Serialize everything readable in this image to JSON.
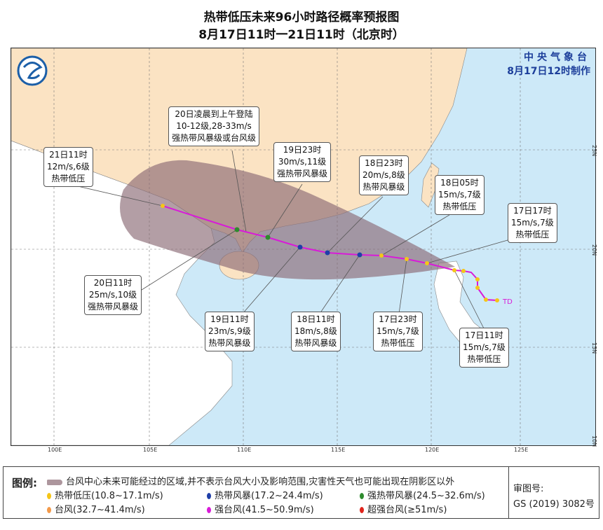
{
  "title": "热带低压未来96小时路径概率预报图",
  "subtitle": "8月17日11时一21日11时（北京时）",
  "issuer": {
    "name": "中央气象台",
    "time": "8月17日12时制作"
  },
  "lon_ticks": [
    "100E",
    "105E",
    "110E",
    "115E",
    "120E",
    "125E"
  ],
  "lat_ticks": [
    "25N",
    "20N",
    "15N",
    "10N"
  ],
  "colors": {
    "ocean": "#cde9f8",
    "china_land": "#fbe3c3",
    "other_land": "#ffffff",
    "cone": "#8a6a74",
    "track": "#d81bd8",
    "td": "#f5c518",
    "ts": "#1f3fa8",
    "sts": "#2e8b2e"
  },
  "track_label": "TD",
  "labels": [
    {
      "time": "21日11时",
      "wind": "12m/s,6级",
      "level": "热带低压"
    },
    {
      "time": "20日凌晨到上午登陆",
      "wind": "10-12级,28-33m/s",
      "level": "强热带风暴级或台风级"
    },
    {
      "time": "19日23时",
      "wind": "30m/s,11级",
      "level": "强热带风暴级"
    },
    {
      "time": "18日23时",
      "wind": "20m/s,8级",
      "level": "热带风暴级"
    },
    {
      "time": "18日05时",
      "wind": "15m/s,7级",
      "level": "热带低压"
    },
    {
      "time": "17日17时",
      "wind": "15m/s,7级",
      "level": "热带低压"
    },
    {
      "time": "20日11时",
      "wind": "25m/s,10级",
      "level": "强热带风暴级"
    },
    {
      "time": "19日11时",
      "wind": "23m/s,9级",
      "level": "热带风暴级"
    },
    {
      "time": "18日11时",
      "wind": "18m/s,8级",
      "level": "热带风暴级"
    },
    {
      "time": "17日23时",
      "wind": "15m/s,7级",
      "level": "热带低压"
    },
    {
      "time": "17日11时",
      "wind": "15m/s,7级",
      "level": "热带低压"
    }
  ],
  "legend": {
    "title": "图例:",
    "cone_text": "台风中心未来可能经过的区域,并不表示台风大小及影响范围,灾害性天气也可能出现在阴影区以外",
    "items": [
      {
        "label": "热带低压(10.8~17.1m/s)",
        "color": "#f5c518"
      },
      {
        "label": "热带风暴(17.2~24.4m/s)",
        "color": "#1f3fa8"
      },
      {
        "label": "强热带风暴(24.5~32.6m/s)",
        "color": "#2e8b2e"
      },
      {
        "label": "台风(32.7~41.4m/s)",
        "color": "#f39a4a"
      },
      {
        "label": "强台风(41.5~50.9m/s)",
        "color": "#d81bd8"
      },
      {
        "label": "超强台风(≥51m/s)",
        "color": "#e0241c"
      }
    ],
    "approval_label": "审图号:",
    "approval_number": "GS (2019) 3082号"
  }
}
